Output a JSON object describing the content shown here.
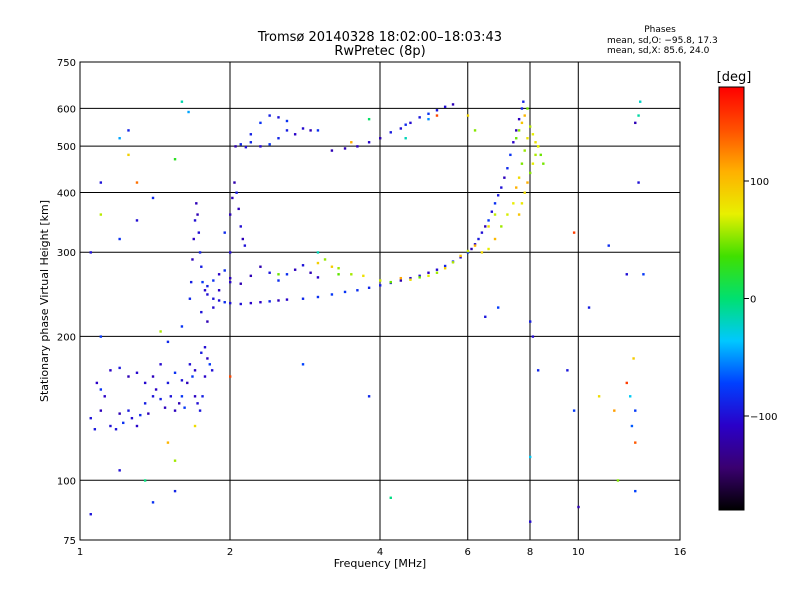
{
  "chart_data": {
    "type": "scatter",
    "title": "Tromsø 20140328 18:02:00–18:03:43",
    "subtitle": "RwPretec (8p)",
    "xlabel": "Frequency [MHz]",
    "ylabel": "Stationary phase Virtual Height [km]",
    "x_scale": "log",
    "y_scale": "log",
    "xlim": [
      1,
      16
    ],
    "ylim": [
      75,
      750
    ],
    "x_ticks": [
      1,
      2,
      4,
      6,
      8,
      10,
      16
    ],
    "x_tick_labels": [
      "1",
      "2",
      "4",
      "6",
      "8",
      "10",
      "16"
    ],
    "y_ticks": [
      75,
      100,
      200,
      300,
      400,
      500,
      600,
      750
    ],
    "y_tick_labels": [
      "75",
      "100",
      "200",
      "300",
      "400",
      "500",
      "600",
      "750"
    ],
    "grid": true,
    "info_box": {
      "heading": "Phases",
      "line1": "mean, sd,O: −95.8, 17.3",
      "line2": "mean, sd,X:  85.6, 24.0"
    },
    "colorbar": {
      "label": "[deg]",
      "ticks": [
        100,
        0,
        -100
      ],
      "tick_labels": [
        "100",
        "0",
        "−100"
      ],
      "range": [
        -180,
        180
      ],
      "colormap": [
        "#000000",
        "#3a0070",
        "#2a00c8",
        "#0040ff",
        "#00c8ff",
        "#00e070",
        "#40e000",
        "#e8f000",
        "#ffb000",
        "#ff5000",
        "#ff0000"
      ]
    },
    "series": [
      {
        "kind": "O-trace",
        "points": [
          [
            1.05,
            135
          ],
          [
            1.07,
            128
          ],
          [
            1.1,
            140
          ],
          [
            1.12,
            150
          ],
          [
            1.15,
            130
          ],
          [
            1.18,
            128
          ],
          [
            1.2,
            138
          ],
          [
            1.22,
            132
          ],
          [
            1.25,
            140
          ],
          [
            1.27,
            135
          ],
          [
            1.3,
            130
          ],
          [
            1.32,
            137
          ],
          [
            1.35,
            145
          ],
          [
            1.37,
            138
          ],
          [
            1.4,
            150
          ],
          [
            1.42,
            155
          ],
          [
            1.45,
            148
          ],
          [
            1.48,
            142
          ],
          [
            1.5,
            160
          ],
          [
            1.52,
            150
          ],
          [
            1.55,
            140
          ],
          [
            1.58,
            145
          ],
          [
            1.6,
            150
          ],
          [
            1.62,
            142
          ],
          [
            1.64,
            160
          ],
          [
            1.66,
            175
          ],
          [
            1.68,
            165
          ],
          [
            1.7,
            150
          ],
          [
            1.72,
            145
          ],
          [
            1.74,
            140
          ],
          [
            1.76,
            150
          ],
          [
            1.78,
            165
          ],
          [
            1.8,
            180
          ],
          [
            1.82,
            175
          ],
          [
            1.84,
            170
          ],
          [
            1.15,
            170
          ],
          [
            1.2,
            172
          ],
          [
            1.3,
            168
          ],
          [
            1.4,
            165
          ],
          [
            1.5,
            195
          ],
          [
            1.45,
            175
          ],
          [
            1.35,
            160
          ],
          [
            1.25,
            165
          ],
          [
            1.1,
            155
          ],
          [
            1.08,
            160
          ],
          [
            1.55,
            168
          ],
          [
            1.6,
            162
          ],
          [
            1.7,
            170
          ],
          [
            1.75,
            185
          ],
          [
            1.78,
            190
          ],
          [
            1.66,
            240
          ],
          [
            1.67,
            260
          ],
          [
            1.68,
            290
          ],
          [
            1.69,
            320
          ],
          [
            1.7,
            350
          ],
          [
            1.71,
            380
          ],
          [
            1.72,
            360
          ],
          [
            1.73,
            330
          ],
          [
            1.74,
            300
          ],
          [
            1.75,
            280
          ],
          [
            1.76,
            260
          ],
          [
            1.78,
            250
          ],
          [
            1.8,
            245
          ],
          [
            1.85,
            240
          ],
          [
            1.9,
            238
          ],
          [
            1.95,
            236
          ],
          [
            2.0,
            235
          ],
          [
            2.1,
            234
          ],
          [
            2.2,
            235
          ],
          [
            2.3,
            236
          ],
          [
            2.4,
            237
          ],
          [
            2.5,
            238
          ],
          [
            2.6,
            239
          ],
          [
            2.8,
            240
          ],
          [
            3.0,
            242
          ],
          [
            3.2,
            245
          ],
          [
            3.4,
            248
          ],
          [
            3.6,
            250
          ],
          [
            3.8,
            253
          ],
          [
            4.0,
            256
          ],
          [
            4.2,
            259
          ],
          [
            4.4,
            262
          ],
          [
            4.6,
            265
          ],
          [
            4.8,
            268
          ],
          [
            5.0,
            272
          ],
          [
            5.2,
            276
          ],
          [
            5.4,
            281
          ],
          [
            5.6,
            287
          ],
          [
            5.8,
            293
          ],
          [
            6.0,
            300
          ],
          [
            6.1,
            305
          ],
          [
            6.2,
            312
          ],
          [
            6.3,
            320
          ],
          [
            6.4,
            330
          ],
          [
            6.5,
            340
          ],
          [
            6.6,
            350
          ],
          [
            6.7,
            365
          ],
          [
            6.8,
            380
          ],
          [
            6.9,
            395
          ],
          [
            7.0,
            410
          ],
          [
            7.1,
            430
          ],
          [
            7.2,
            450
          ],
          [
            7.3,
            480
          ],
          [
            7.4,
            510
          ],
          [
            7.5,
            540
          ],
          [
            7.6,
            570
          ],
          [
            7.7,
            600
          ],
          [
            7.75,
            620
          ],
          [
            1.8,
            255
          ],
          [
            1.85,
            262
          ],
          [
            1.9,
            270
          ],
          [
            1.95,
            275
          ],
          [
            2.0,
            265
          ],
          [
            2.1,
            258
          ],
          [
            2.2,
            268
          ],
          [
            2.3,
            280
          ],
          [
            2.4,
            272
          ],
          [
            2.5,
            262
          ],
          [
            2.6,
            270
          ],
          [
            2.7,
            276
          ],
          [
            2.8,
            282
          ],
          [
            2.9,
            272
          ],
          [
            3.0,
            266
          ],
          [
            1.75,
            225
          ],
          [
            1.8,
            215
          ],
          [
            1.85,
            230
          ],
          [
            1.9,
            250
          ],
          [
            2.0,
            260
          ],
          [
            1.95,
            330
          ],
          [
            2.0,
            360
          ],
          [
            2.02,
            390
          ],
          [
            2.04,
            420
          ],
          [
            2.06,
            400
          ],
          [
            2.08,
            370
          ],
          [
            2.1,
            340
          ],
          [
            2.12,
            320
          ],
          [
            2.14,
            310
          ],
          [
            2.0,
            300
          ],
          [
            2.05,
            500
          ],
          [
            2.1,
            505
          ],
          [
            2.15,
            498
          ],
          [
            2.2,
            510
          ],
          [
            2.3,
            500
          ],
          [
            2.4,
            505
          ],
          [
            2.5,
            520
          ],
          [
            2.6,
            540
          ],
          [
            2.7,
            530
          ],
          [
            2.8,
            545
          ],
          [
            2.9,
            540
          ],
          [
            3.0,
            540
          ],
          [
            3.2,
            490
          ],
          [
            3.4,
            495
          ],
          [
            3.6,
            500
          ],
          [
            3.8,
            510
          ],
          [
            4.0,
            520
          ],
          [
            4.2,
            535
          ],
          [
            4.4,
            545
          ],
          [
            4.6,
            560
          ],
          [
            4.8,
            575
          ],
          [
            5.0,
            585
          ],
          [
            5.2,
            595
          ],
          [
            5.4,
            605
          ],
          [
            5.6,
            612
          ],
          [
            2.3,
            560
          ],
          [
            2.4,
            580
          ],
          [
            2.5,
            575
          ],
          [
            2.6,
            565
          ],
          [
            2.2,
            530
          ],
          [
            1.05,
            300
          ],
          [
            1.1,
            200
          ],
          [
            1.2,
            320
          ],
          [
            1.3,
            350
          ],
          [
            1.1,
            420
          ],
          [
            1.25,
            540
          ],
          [
            1.4,
            390
          ],
          [
            1.6,
            210
          ],
          [
            9.5,
            170
          ],
          [
            9.8,
            140
          ],
          [
            10.5,
            230
          ],
          [
            11.5,
            310
          ],
          [
            12.5,
            270
          ],
          [
            13.0,
            560
          ],
          [
            13.5,
            270
          ],
          [
            6.5,
            220
          ],
          [
            8.0,
            215
          ],
          [
            8.1,
            200
          ],
          [
            8.3,
            170
          ],
          [
            3.8,
            150
          ],
          [
            1.05,
            85
          ],
          [
            1.2,
            105
          ],
          [
            1.4,
            90
          ],
          [
            1.55,
            95
          ],
          [
            10.0,
            88
          ],
          [
            8.0,
            82
          ],
          [
            13.2,
            420
          ],
          [
            13.0,
            140
          ]
        ]
      },
      {
        "kind": "X-trace",
        "points": [
          [
            3.0,
            285
          ],
          [
            3.1,
            290
          ],
          [
            3.2,
            280
          ],
          [
            3.3,
            278
          ],
          [
            3.5,
            270
          ],
          [
            3.7,
            268
          ],
          [
            4.0,
            262
          ],
          [
            4.2,
            260
          ],
          [
            4.4,
            265
          ],
          [
            4.6,
            263
          ],
          [
            4.8,
            266
          ],
          [
            5.0,
            268
          ],
          [
            5.2,
            272
          ],
          [
            5.4,
            278
          ],
          [
            5.6,
            286
          ],
          [
            5.8,
            295
          ],
          [
            6.0,
            302
          ],
          [
            6.2,
            310
          ],
          [
            6.4,
            300
          ],
          [
            6.6,
            305
          ],
          [
            6.8,
            320
          ],
          [
            7.0,
            340
          ],
          [
            7.2,
            360
          ],
          [
            7.4,
            380
          ],
          [
            7.5,
            410
          ],
          [
            7.6,
            430
          ],
          [
            7.7,
            460
          ],
          [
            7.8,
            490
          ],
          [
            7.9,
            520
          ],
          [
            8.0,
            550
          ],
          [
            8.1,
            530
          ],
          [
            8.2,
            510
          ],
          [
            8.3,
            500
          ],
          [
            8.4,
            480
          ],
          [
            8.5,
            460
          ],
          [
            7.6,
            360
          ],
          [
            7.7,
            380
          ],
          [
            7.8,
            400
          ],
          [
            7.9,
            420
          ],
          [
            8.0,
            440
          ],
          [
            8.1,
            460
          ],
          [
            8.2,
            480
          ],
          [
            8.3,
            500
          ],
          [
            7.5,
            520
          ],
          [
            7.6,
            540
          ],
          [
            7.7,
            560
          ],
          [
            7.8,
            580
          ],
          [
            7.9,
            600
          ],
          [
            6.6,
            340
          ],
          [
            6.8,
            360
          ]
        ]
      },
      {
        "kind": "scattered",
        "points": [
          [
            1.6,
            620
          ],
          [
            1.2,
            520
          ],
          [
            1.25,
            480
          ],
          [
            1.55,
            470
          ],
          [
            1.65,
            590
          ],
          [
            1.1,
            360
          ],
          [
            1.3,
            420
          ],
          [
            2.0,
            165
          ],
          [
            4.2,
            92
          ],
          [
            5.2,
            580
          ],
          [
            3.5,
            510
          ],
          [
            3.8,
            570
          ],
          [
            4.5,
            555
          ],
          [
            5.0,
            570
          ],
          [
            2.8,
            175
          ],
          [
            6.0,
            580
          ],
          [
            6.2,
            540
          ],
          [
            12.5,
            160
          ],
          [
            12.7,
            150
          ],
          [
            13.2,
            580
          ],
          [
            13.3,
            620
          ],
          [
            12.8,
            130
          ],
          [
            13.0,
            120
          ],
          [
            1.45,
            205
          ],
          [
            1.5,
            120
          ],
          [
            1.7,
            130
          ],
          [
            8.0,
            112
          ],
          [
            12.0,
            100
          ],
          [
            13.0,
            95
          ],
          [
            11.0,
            150
          ],
          [
            9.8,
            330
          ],
          [
            1.55,
            110
          ],
          [
            4.5,
            520
          ],
          [
            3.0,
            300
          ],
          [
            3.3,
            270
          ],
          [
            2.5,
            270
          ],
          [
            6.9,
            230
          ],
          [
            1.35,
            100
          ],
          [
            11.8,
            140
          ],
          [
            12.9,
            180
          ]
        ]
      }
    ]
  }
}
